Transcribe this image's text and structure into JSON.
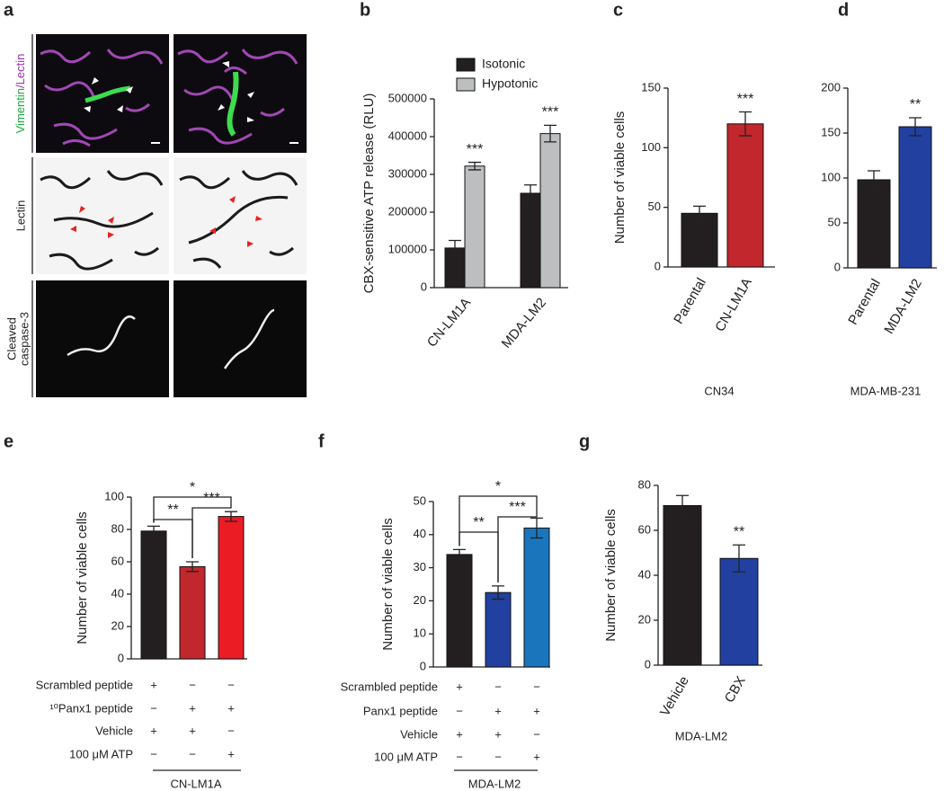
{
  "panel_a": {
    "panel": "a",
    "rows": [
      [
        "Vimentin",
        "/Lectin"
      ],
      [
        "Lectin"
      ],
      [
        "Cleaved",
        "caspase-3"
      ]
    ]
  },
  "chart_data": [
    {
      "type": "bar",
      "panel": "b",
      "ylabel": "CBX-sensitive ATP release (RLU)",
      "categories": [
        "CN-LM1A",
        "MDA-LM2"
      ],
      "series": [
        {
          "name": "Isotonic",
          "color": "#231f20",
          "values": [
            105000,
            250000
          ],
          "errors": [
            20000,
            22000
          ]
        },
        {
          "name": "Hypotonic",
          "color": "#bcbec0",
          "values": [
            322000,
            408000
          ],
          "errors": [
            10000,
            22000
          ],
          "annotations": [
            "***",
            "***"
          ]
        }
      ],
      "ylim": [
        0,
        500000
      ],
      "yticks": [
        0,
        100000,
        200000,
        300000,
        400000,
        500000
      ],
      "legend": "top-left"
    },
    {
      "type": "bar",
      "panel": "c",
      "ylabel": "Number of viable cells",
      "xlabel": "CN34",
      "categories": [
        "Parental",
        "CN-LM1A"
      ],
      "series": [
        {
          "colors": [
            "#231f20",
            "#c1272d"
          ],
          "values": [
            45,
            120
          ],
          "errors": [
            6,
            10
          ],
          "annotations": [
            null,
            "***"
          ]
        }
      ],
      "ylim": [
        0,
        150
      ],
      "yticks": [
        0,
        50,
        100,
        150
      ]
    },
    {
      "type": "bar",
      "panel": "d",
      "xlabel": "MDA-MB-231",
      "categories": [
        "Parental",
        "MDA-LM2"
      ],
      "series": [
        {
          "colors": [
            "#231f20",
            "#2140a0"
          ],
          "values": [
            98,
            157
          ],
          "errors": [
            10,
            10
          ],
          "annotations": [
            null,
            "**"
          ]
        }
      ],
      "ylim": [
        0,
        200
      ],
      "yticks": [
        0,
        50,
        100,
        150,
        200
      ]
    },
    {
      "type": "bar",
      "panel": "e",
      "ylabel": "Number of viable cells",
      "xlabel": "CN-LM1A",
      "categories": [
        null,
        null,
        null
      ],
      "series": [
        {
          "colors": [
            "#231f20",
            "#c1272d",
            "#ec1c24"
          ],
          "values": [
            79,
            57,
            88
          ],
          "errors": [
            3,
            3,
            3
          ]
        }
      ],
      "ylim": [
        0,
        100
      ],
      "yticks": [
        0,
        20,
        40,
        60,
        80,
        100
      ],
      "brackets": [
        "*",
        "**",
        "***"
      ],
      "conditions": [
        {
          "label": "Scrambled peptide",
          "signs": [
            "+",
            "−",
            "−"
          ]
        },
        {
          "label": "¹⁰Panx1 peptide",
          "signs": [
            "−",
            "+",
            "+"
          ]
        },
        {
          "label": "Vehicle",
          "signs": [
            "+",
            "+",
            "−"
          ]
        },
        {
          "label": "100 μM ATP",
          "signs": [
            "−",
            "−",
            "+"
          ]
        }
      ]
    },
    {
      "type": "bar",
      "panel": "f",
      "ylabel": "Number of viable cells",
      "xlabel": "MDA-LM2",
      "categories": [
        null,
        null,
        null
      ],
      "series": [
        {
          "colors": [
            "#231f20",
            "#2140a0",
            "#1b75bc"
          ],
          "values": [
            34,
            22.5,
            42
          ],
          "errors": [
            1.5,
            2,
            3
          ]
        }
      ],
      "ylim": [
        0,
        50
      ],
      "yticks": [
        0,
        10,
        20,
        30,
        40,
        50
      ],
      "brackets": [
        "*",
        "**",
        "***"
      ],
      "conditions": [
        {
          "label": "Scrambled peptide",
          "signs": [
            "+",
            "−",
            "−"
          ]
        },
        {
          "label": "Panx1 peptide",
          "signs": [
            "−",
            "+",
            "+"
          ]
        },
        {
          "label": "Vehicle",
          "signs": [
            "+",
            "+",
            "−"
          ]
        },
        {
          "label": "100 μM ATP",
          "signs": [
            "−",
            "−",
            "+"
          ]
        }
      ]
    },
    {
      "type": "bar",
      "panel": "g",
      "ylabel": "Number of viable cells",
      "xlabel": "MDA-LM2",
      "categories": [
        "Vehicle",
        "CBX"
      ],
      "series": [
        {
          "colors": [
            "#231f20",
            "#2140a0"
          ],
          "values": [
            71,
            47.5
          ],
          "errors": [
            4.5,
            6
          ],
          "annotations": [
            null,
            "**"
          ]
        }
      ],
      "ylim": [
        0,
        80
      ],
      "yticks": [
        0,
        20,
        40,
        60,
        80
      ]
    }
  ]
}
